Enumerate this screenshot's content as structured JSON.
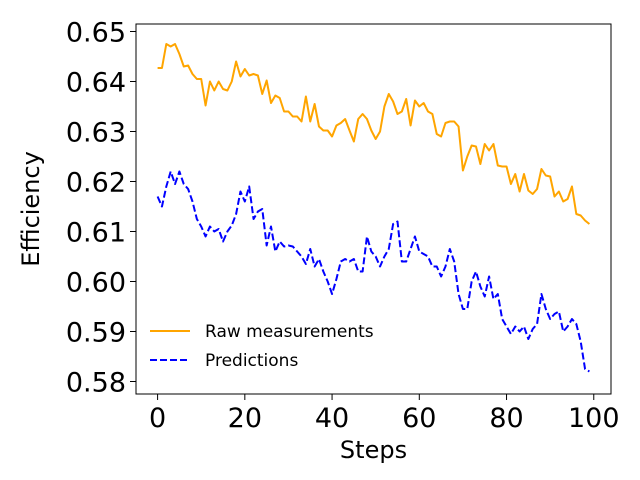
{
  "chart_data": {
    "type": "line",
    "title": "",
    "xlabel": "Steps",
    "ylabel": "Efficiency",
    "xlim": [
      -4.95,
      103.95
    ],
    "ylim": [
      0.5775,
      0.6515
    ],
    "x_ticks": [
      0,
      20,
      40,
      60,
      80,
      100
    ],
    "x_tick_labels": [
      "0",
      "20",
      "40",
      "60",
      "80",
      "100"
    ],
    "y_ticks": [
      0.58,
      0.59,
      0.6,
      0.61,
      0.62,
      0.63,
      0.64,
      0.65
    ],
    "y_tick_labels": [
      "0.58",
      "0.59",
      "0.60",
      "0.61",
      "0.62",
      "0.63",
      "0.64",
      "0.65"
    ],
    "grid": false,
    "legend_position": "lower-left",
    "series": [
      {
        "name": "Raw measurements",
        "color": "#ffa500",
        "style": "solid",
        "x": [
          0,
          1,
          2,
          3,
          4,
          5,
          6,
          7,
          8,
          9,
          10,
          11,
          12,
          13,
          14,
          15,
          16,
          17,
          18,
          19,
          20,
          21,
          22,
          23,
          24,
          25,
          26,
          27,
          28,
          29,
          30,
          31,
          32,
          33,
          34,
          35,
          36,
          37,
          38,
          39,
          40,
          41,
          42,
          43,
          44,
          45,
          46,
          47,
          48,
          49,
          50,
          51,
          52,
          53,
          54,
          55,
          56,
          57,
          58,
          59,
          60,
          61,
          62,
          63,
          64,
          65,
          66,
          67,
          68,
          69,
          70,
          71,
          72,
          73,
          74,
          75,
          76,
          77,
          78,
          79,
          80,
          81,
          82,
          83,
          84,
          85,
          86,
          87,
          88,
          89,
          90,
          91,
          92,
          93,
          94,
          95,
          96,
          97,
          98,
          99
        ],
        "values": [
          0.6427,
          0.6427,
          0.6475,
          0.647,
          0.6475,
          0.6455,
          0.643,
          0.6432,
          0.6415,
          0.6405,
          0.6405,
          0.6352,
          0.64,
          0.6382,
          0.64,
          0.6385,
          0.6382,
          0.64,
          0.644,
          0.641,
          0.6425,
          0.6412,
          0.6415,
          0.6412,
          0.6375,
          0.6402,
          0.6357,
          0.6372,
          0.6367,
          0.634,
          0.634,
          0.633,
          0.633,
          0.632,
          0.637,
          0.632,
          0.6355,
          0.631,
          0.6302,
          0.6302,
          0.629,
          0.6312,
          0.6317,
          0.6325,
          0.6302,
          0.628,
          0.6325,
          0.6335,
          0.6325,
          0.6302,
          0.6285,
          0.63,
          0.635,
          0.6375,
          0.636,
          0.6335,
          0.634,
          0.6365,
          0.6312,
          0.6362,
          0.635,
          0.6357,
          0.634,
          0.6335,
          0.6295,
          0.629,
          0.6317,
          0.632,
          0.632,
          0.631,
          0.6222,
          0.625,
          0.6272,
          0.627,
          0.6235,
          0.6275,
          0.6262,
          0.6275,
          0.6232,
          0.623,
          0.623,
          0.6195,
          0.6215,
          0.618,
          0.6215,
          0.6182,
          0.6175,
          0.6185,
          0.6225,
          0.6212,
          0.621,
          0.617,
          0.618,
          0.616,
          0.6165,
          0.619,
          0.6135,
          0.6132,
          0.6122,
          0.6115
        ]
      },
      {
        "name": "Predictions",
        "color": "#0000ff",
        "style": "dashed",
        "x": [
          0,
          1,
          2,
          3,
          4,
          5,
          6,
          7,
          8,
          9,
          10,
          11,
          12,
          13,
          14,
          15,
          16,
          17,
          18,
          19,
          20,
          21,
          22,
          23,
          24,
          25,
          26,
          27,
          28,
          29,
          30,
          31,
          32,
          33,
          34,
          35,
          36,
          37,
          38,
          39,
          40,
          41,
          42,
          43,
          44,
          45,
          46,
          47,
          48,
          49,
          50,
          51,
          52,
          53,
          54,
          55,
          56,
          57,
          58,
          59,
          60,
          61,
          62,
          63,
          64,
          65,
          66,
          67,
          68,
          69,
          70,
          71,
          72,
          73,
          74,
          75,
          76,
          77,
          78,
          79,
          80,
          81,
          82,
          83,
          84,
          85,
          86,
          87,
          88,
          89,
          90,
          91,
          92,
          93,
          94,
          95,
          96,
          97,
          98,
          99
        ],
        "values": [
          0.617,
          0.615,
          0.619,
          0.622,
          0.6195,
          0.622,
          0.6195,
          0.6185,
          0.616,
          0.6125,
          0.611,
          0.609,
          0.611,
          0.61,
          0.6105,
          0.608,
          0.61,
          0.6112,
          0.6135,
          0.618,
          0.616,
          0.619,
          0.6125,
          0.614,
          0.6145,
          0.6072,
          0.611,
          0.606,
          0.608,
          0.607,
          0.6072,
          0.607,
          0.606,
          0.605,
          0.6035,
          0.6065,
          0.603,
          0.6045,
          0.602,
          0.6,
          0.5975,
          0.6005,
          0.604,
          0.6045,
          0.604,
          0.6045,
          0.602,
          0.602,
          0.609,
          0.606,
          0.605,
          0.603,
          0.605,
          0.6065,
          0.6115,
          0.612,
          0.604,
          0.604,
          0.6065,
          0.609,
          0.606,
          0.6055,
          0.605,
          0.603,
          0.603,
          0.601,
          0.603,
          0.6065,
          0.604,
          0.5975,
          0.5945,
          0.5945,
          0.6,
          0.602,
          0.599,
          0.597,
          0.601,
          0.5965,
          0.5975,
          0.5925,
          0.591,
          0.5895,
          0.591,
          0.59,
          0.591,
          0.5885,
          0.5905,
          0.5915,
          0.5975,
          0.5945,
          0.5925,
          0.5935,
          0.594,
          0.59,
          0.591,
          0.5925,
          0.5915,
          0.588,
          0.5825,
          0.582
        ]
      }
    ]
  }
}
